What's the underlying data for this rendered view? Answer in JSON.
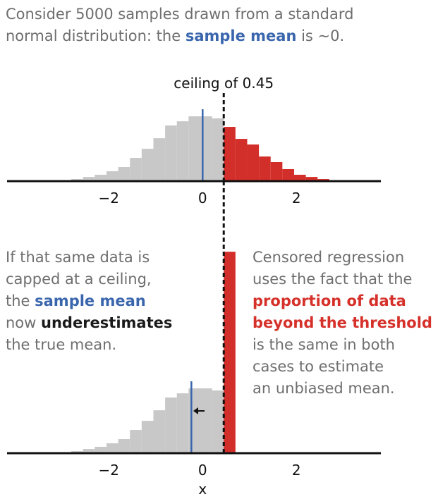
{
  "intro": [
    [
      {
        "text": "Consider 5000 samples drawn from a standard"
      }
    ],
    [
      {
        "text": "normal distribution: the "
      },
      {
        "text": "sample mean",
        "style": "blue"
      },
      {
        "text": " is ~0."
      }
    ]
  ],
  "left_note": [
    [
      {
        "text": "If that same data is"
      }
    ],
    [
      {
        "text": "capped at a ceiling,"
      }
    ],
    [
      {
        "text": "the "
      },
      {
        "text": "sample mean",
        "style": "blue"
      }
    ],
    [
      {
        "text": "now "
      },
      {
        "text": "underestimates",
        "style": "dark"
      }
    ],
    [
      {
        "text": "the true mean."
      }
    ]
  ],
  "right_note": [
    [
      {
        "text": "Censored regression"
      }
    ],
    [
      {
        "text": "uses the fact that the"
      }
    ],
    [
      {
        "text": "proportion of data",
        "style": "red"
      }
    ],
    [
      {
        "text": "beyond the threshold",
        "style": "red"
      }
    ],
    [
      {
        "text": "is the same in both"
      }
    ],
    [
      {
        "text": "cases to estimate"
      }
    ],
    [
      {
        "text": "an unbiased mean."
      }
    ]
  ],
  "styles": {
    "plain": "#6e6e6e",
    "blue": "#3a66ad",
    "dark": "#1a1a1a",
    "red": "#d6302a"
  },
  "chart_data": [
    {
      "type": "histogram",
      "ceiling_label": "ceiling of 0.45",
      "ceiling": 0.45,
      "mean": 0,
      "mean_color": "#3a66ad",
      "color": "#c8c8c8",
      "highlight_color": "#d32f2a",
      "bins": [
        -2.8,
        -2.55,
        -2.3,
        -2.05,
        -1.8,
        -1.55,
        -1.3,
        -1.05,
        -0.8,
        -0.55,
        -0.3,
        -0.05,
        0.2,
        0.45,
        0.7,
        0.95,
        1.2,
        1.45,
        1.7,
        1.95,
        2.2,
        2.45,
        2.7
      ],
      "values": [
        16,
        32,
        49,
        76,
        108,
        178,
        248,
        329,
        427,
        459,
        497,
        497,
        481,
        416,
        324,
        281,
        189,
        146,
        92,
        49,
        32,
        16
      ],
      "xlim": [
        -4.17,
        3.8
      ],
      "ylim": [
        0,
        1600
      ],
      "xticks": [
        {
          "value": -2,
          "label": "−2"
        },
        0,
        2
      ]
    },
    {
      "type": "histogram",
      "ceiling": 0.45,
      "mean": -0.24,
      "mean_color": "#3a66ad",
      "color": "#c8c8c8",
      "highlight_color": "#d32f2a",
      "xlabel": "x",
      "bins": [
        -2.8,
        -2.55,
        -2.3,
        -2.05,
        -1.8,
        -1.55,
        -1.3,
        -1.05,
        -0.8,
        -0.55,
        -0.3,
        -0.05,
        0.2,
        0.45,
        0.7
      ],
      "values": [
        16,
        32,
        49,
        76,
        108,
        178,
        248,
        329,
        427,
        459,
        497,
        497,
        481,
        1545
      ],
      "xlim": [
        -4.17,
        3.8
      ],
      "ylim": [
        0,
        1600
      ],
      "xticks": [
        {
          "value": -2,
          "label": "−2"
        },
        0,
        2
      ]
    }
  ]
}
